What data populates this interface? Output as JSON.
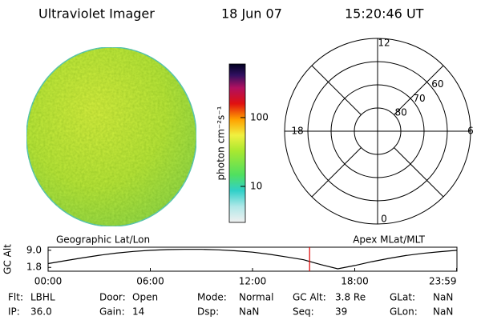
{
  "header": {
    "title": "Ultraviolet Imager",
    "date": "18 Jun 07",
    "time": "15:20:46 UT"
  },
  "colorbar": {
    "label": "photon cm⁻²s⁻¹",
    "scale": "log",
    "lim": [
      3,
      600
    ],
    "ticks": [
      100,
      10
    ]
  },
  "polar": {
    "latlim": [
      50,
      90
    ],
    "latticks": [
      60,
      70,
      80
    ],
    "mlt_ticks": [
      12,
      18,
      6,
      0
    ]
  },
  "altitude": {
    "ylabel": "GC Alt",
    "left_label": "Geographic Lat/Lon",
    "right_label": "Apex MLat/MLT",
    "xlim": [
      0,
      24
    ],
    "ylim": [
      0.2,
      10.3
    ],
    "yticks": [
      {
        "value": 9,
        "label": "9.0"
      },
      {
        "value": 1.8,
        "label": "1.8"
      }
    ],
    "xticks": [
      {
        "value": 0,
        "label": "00:00"
      },
      {
        "value": 6,
        "label": "06:00"
      },
      {
        "value": 12,
        "label": "12:00"
      },
      {
        "value": 18,
        "label": "18:00"
      },
      {
        "value": 23.98,
        "label": "23:59"
      }
    ],
    "x": [
      0,
      1,
      2,
      3,
      4,
      5,
      6,
      7,
      8,
      9,
      10,
      11,
      12,
      13,
      14,
      15,
      16,
      17,
      18,
      19,
      20,
      21,
      22,
      23,
      24
    ],
    "values": [
      3.4,
      4.6,
      5.8,
      6.9,
      7.8,
      8.5,
      9.0,
      9.3,
      9.4,
      9.4,
      9.2,
      8.8,
      8.2,
      7.3,
      6.2,
      5.0,
      3.0,
      1.2,
      2.6,
      4.2,
      5.6,
      6.8,
      7.7,
      8.4,
      9.0
    ],
    "color": "#000000",
    "cursor": 15.35,
    "cursor_color": "#e00000"
  },
  "status": [
    [
      {
        "label": "Flt:",
        "value": "LBHL"
      },
      {
        "label": "Door:",
        "value": "Open"
      },
      {
        "label": "Mode:",
        "value": "Normal"
      },
      {
        "label": "GC Alt:",
        "value": "3.8 Re"
      },
      {
        "label": "GLat:",
        "value": "NaN"
      }
    ],
    [
      {
        "label": "IP:",
        "value": "36.0"
      },
      {
        "label": "Gain:",
        "value": "14"
      },
      {
        "label": "Dsp:",
        "value": "NaN"
      },
      {
        "label": "Seq:",
        "value": "39"
      },
      {
        "label": "GLon:",
        "value": "NaN"
      }
    ]
  ]
}
